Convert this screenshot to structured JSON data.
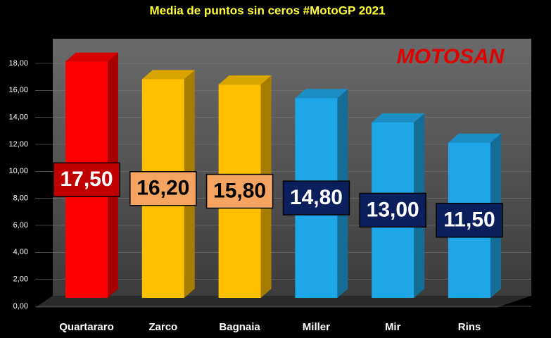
{
  "chart_data": {
    "type": "bar",
    "title": "Media de puntos sin ceros #MotoGP 2021",
    "logo": "MOTOSAN",
    "categories": [
      "Quartararo",
      "Zarco",
      "Bagnaia",
      "Miller",
      "Mir",
      "Rins"
    ],
    "values": [
      17.5,
      16.2,
      15.8,
      14.8,
      13.0,
      11.5
    ],
    "value_labels": [
      "17,50",
      "16,20",
      "15,80",
      "14,80",
      "13,00",
      "11,50"
    ],
    "colors": [
      "#ff0000",
      "#ffc000",
      "#ffc000",
      "#1ea7e8",
      "#1ea7e8",
      "#1ea7e8"
    ],
    "label_box_colors": [
      "#c00000",
      "#f4a460",
      "#f4a460",
      "#0b1f5c",
      "#0b1f5c",
      "#0b1f5c"
    ],
    "ylim": [
      0,
      18
    ],
    "yticks": [
      {
        "value": 0,
        "label": "0,00"
      },
      {
        "value": 2,
        "label": "2,00"
      },
      {
        "value": 4,
        "label": "4,00"
      },
      {
        "value": 6,
        "label": "6,00"
      },
      {
        "value": 8,
        "label": "8,00"
      },
      {
        "value": 10,
        "label": "10,00"
      },
      {
        "value": 12,
        "label": "12,00"
      },
      {
        "value": 14,
        "label": "14,00"
      },
      {
        "value": 16,
        "label": "16,00"
      },
      {
        "value": 18,
        "label": "18,00"
      }
    ],
    "grid": true
  }
}
